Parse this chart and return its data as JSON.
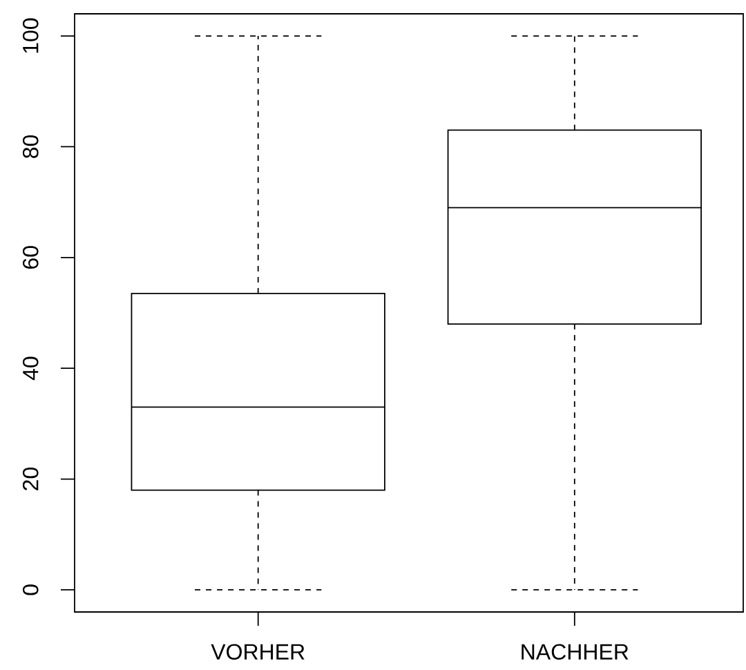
{
  "chart_data": {
    "type": "box",
    "categories": [
      "VORHER",
      "NACHHER"
    ],
    "boxes": [
      {
        "low": 0,
        "q1": 18,
        "median": 33,
        "q3": 53.5,
        "high": 100
      },
      {
        "low": 0,
        "q1": 48,
        "median": 69,
        "q3": 83,
        "high": 100
      }
    ],
    "color": "#000000",
    "line_style": "dashed",
    "ylim": [
      -4,
      104
    ],
    "yticks": [
      0,
      20,
      40,
      60,
      80,
      100
    ]
  }
}
